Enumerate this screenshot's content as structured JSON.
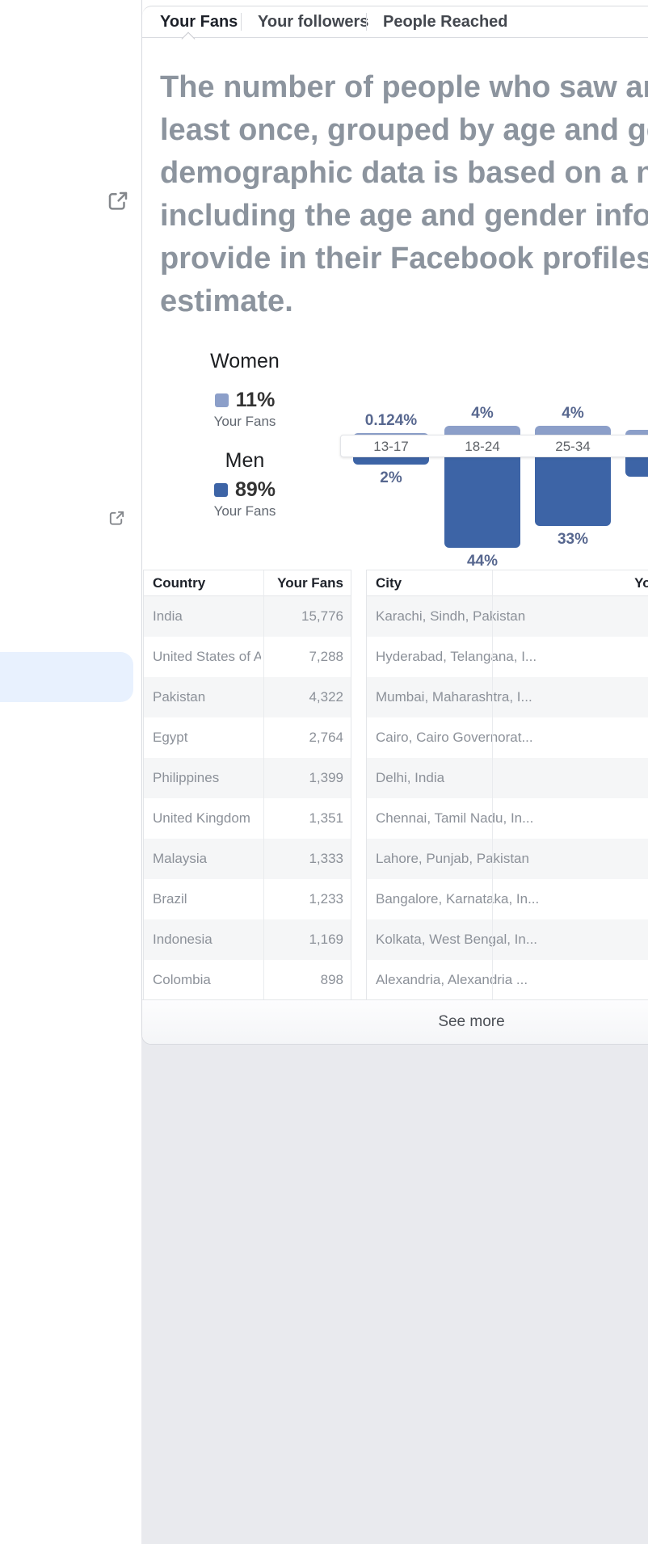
{
  "tabs": [
    {
      "label": "Your Fans",
      "active": true
    },
    {
      "label": "Your followers",
      "active": false
    },
    {
      "label": "People Reached",
      "active": false
    }
  ],
  "description_lines": [
    "The number of people who saw an",
    "least once, grouped by age and ge",
    "demographic data is based on a n",
    "including the age and gender info",
    "provide in their Facebook profiles",
    "estimate."
  ],
  "legend": {
    "women_title": "Women",
    "women_percent": "11%",
    "women_caption": "Your Fans",
    "men_title": "Men",
    "men_percent": "89%",
    "men_caption": "Your Fans"
  },
  "chart_data": {
    "type": "bar",
    "variant": "diverging-vertical-age-gender",
    "unit": "%",
    "categories": [
      "13-17",
      "18-24",
      "25-34",
      ""
    ],
    "series": [
      {
        "name": "Women",
        "color": "#8c9fc9",
        "values": [
          0.124,
          4,
          4,
          2
        ],
        "labels": [
          "0.124%",
          "4%",
          "4%",
          ""
        ]
      },
      {
        "name": "Men",
        "color": "#3d64a6",
        "values": [
          2,
          44,
          33,
          8
        ],
        "labels": [
          "2%",
          "44%",
          "33%",
          ""
        ]
      }
    ],
    "axis_labels_position": "middle-band",
    "last_column_clipped": true,
    "legend_position": "left"
  },
  "tables": {
    "country": {
      "headers": [
        "Country",
        "Your Fans"
      ],
      "rows": [
        [
          "India",
          "15,776"
        ],
        [
          "United States of America",
          "7,288"
        ],
        [
          "Pakistan",
          "4,322"
        ],
        [
          "Egypt",
          "2,764"
        ],
        [
          "Philippines",
          "1,399"
        ],
        [
          "United Kingdom",
          "1,351"
        ],
        [
          "Malaysia",
          "1,333"
        ],
        [
          "Brazil",
          "1,233"
        ],
        [
          "Indonesia",
          "1,169"
        ],
        [
          "Colombia",
          "898"
        ]
      ]
    },
    "city": {
      "headers": [
        "City",
        "Your Fans"
      ],
      "rows": [
        [
          "Karachi, Sindh, Pakistan",
          ""
        ],
        [
          "Hyderabad, Telangana, I...",
          ""
        ],
        [
          "Mumbai, Maharashtra, I...",
          ""
        ],
        [
          "Cairo, Cairo Governorat...",
          ""
        ],
        [
          "Delhi, India",
          ""
        ],
        [
          "Chennai, Tamil Nadu, In...",
          ""
        ],
        [
          "Lahore, Punjab, Pakistan",
          ""
        ],
        [
          "Bangalore, Karnataka, In...",
          ""
        ],
        [
          "Kolkata, West Bengal, In...",
          ""
        ],
        [
          "Alexandria, Alexandria ...",
          ""
        ]
      ]
    }
  },
  "footer": {
    "see_more_label": "See more"
  },
  "icons": {
    "left_icon_1": "external-link-icon",
    "left_icon_2": "external-link-icon"
  },
  "colors": {
    "women_bar": "#8c9fc9",
    "men_bar": "#3d64a6",
    "bar_label_text": "#57678f",
    "page_bg": "#e9eaee",
    "highlight_item_bg": "#e8f1fe",
    "card_border": "#d8dadf",
    "row_alt_bg": "#f5f6f7"
  }
}
